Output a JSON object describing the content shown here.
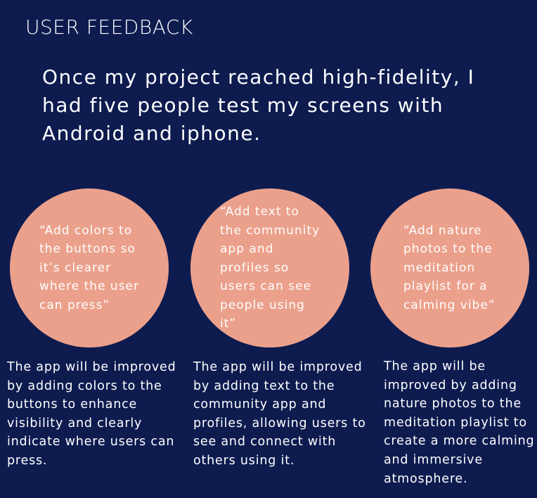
{
  "title": "USER FEEDBACK",
  "intro": "Once my project reached high-fidelity, I had five people test my screens with Android and iphone.",
  "colors": {
    "background": "#0d1b4f",
    "circle": "#eba08b",
    "text": "#ffffff"
  },
  "feedback": [
    {
      "quote": "“Add colors to the buttons so it’s clearer where the user can press”",
      "response": "The app will be improved by adding colors to the buttons to enhance visibility and clearly indicate where users can press."
    },
    {
      "quote": "“Add text to the community app and profiles so users can see people using it”",
      "response": "The app will be improved by adding text to the community app and profiles, allowing users to see and connect with others using it."
    },
    {
      "quote": "“Add nature photos to the meditation playlist for a calming vibe”",
      "response": "The app will be improved by adding nature photos to the meditation playlist to create a more calming and immersive atmosphere."
    }
  ]
}
